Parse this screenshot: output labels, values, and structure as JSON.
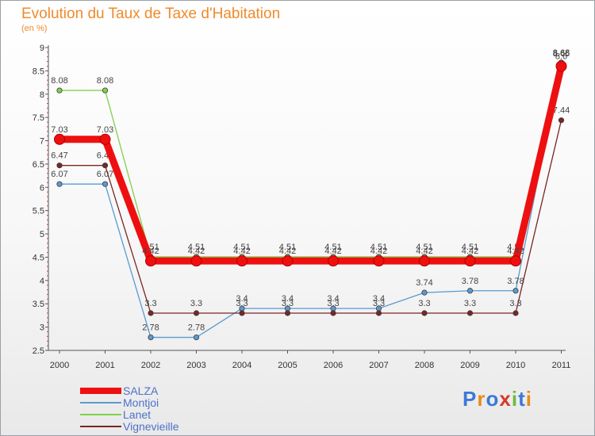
{
  "header": {
    "title": "Evolution du Taux de Taxe d'Habitation",
    "unit": "(en %)"
  },
  "logo": {
    "text": "Proxiti",
    "colors": [
      "#3b79d6",
      "#e98b1d",
      "#3b79d6",
      "#d9382c",
      "#6dbb3c",
      "#3b79d6",
      "#e98b1d"
    ]
  },
  "chart_data": {
    "type": "line",
    "x": [
      "2000",
      "2001",
      "2002",
      "2003",
      "2004",
      "2005",
      "2006",
      "2007",
      "2008",
      "2009",
      "2010",
      "2011"
    ],
    "ylim": [
      2.5,
      9
    ],
    "yticks": [
      "2.5",
      "3",
      "3.5",
      "4",
      "4.5",
      "5",
      "5.5",
      "6",
      "6.5",
      "7",
      "7.5",
      "8",
      "8.5",
      "9"
    ],
    "grid": false,
    "legend_position": "bottom-left",
    "series": [
      {
        "name": "Montjoi",
        "color": "#5a9ad0",
        "values": [
          6.07,
          6.07,
          2.78,
          2.78,
          3.4,
          3.4,
          3.4,
          3.4,
          3.74,
          3.78,
          3.78,
          8.68
        ],
        "labels": [
          "6.07",
          "6.07",
          "2.78",
          "2.78",
          "3.4",
          "3.4",
          "3.4",
          "3.4",
          "3.74",
          "3.78",
          "3.78",
          "8.68"
        ]
      },
      {
        "name": "Vignevieille",
        "color": "#7b2525",
        "values": [
          6.47,
          6.47,
          3.3,
          3.3,
          3.3,
          3.3,
          3.3,
          3.3,
          3.3,
          3.3,
          3.3,
          7.44
        ],
        "labels": [
          "6.47",
          "6.47",
          "3.3",
          "3.3",
          "3.3",
          "3.3",
          "3.3",
          "3.3",
          "3.3",
          "3.3",
          "3.3",
          "7.44"
        ]
      },
      {
        "name": "Lanet",
        "color": "#7fd14a",
        "values": [
          8.08,
          8.08,
          4.51,
          4.51,
          4.51,
          4.51,
          4.51,
          4.51,
          4.51,
          4.51,
          4.51,
          8.66
        ],
        "labels": [
          "8.08",
          "8.08",
          "4.51",
          "4.51",
          "4.51",
          "4.51",
          "4.51",
          "4.51",
          "4.51",
          "4.51",
          "4.51",
          "8.66"
        ]
      },
      {
        "name": "SALZA",
        "color": "#ee1010",
        "values": [
          7.03,
          7.03,
          4.42,
          4.42,
          4.42,
          4.42,
          4.42,
          4.42,
          4.42,
          4.42,
          4.42,
          8.6
        ],
        "labels": [
          "7.03",
          "7.03",
          "4.42",
          "4.42",
          "4.42",
          "4.42",
          "4.42",
          "4.42",
          "4.42",
          "4.42",
          "4.42",
          "8.6"
        ]
      }
    ],
    "legend": [
      "SALZA",
      "Montjoi",
      "Lanet",
      "Vignevieille"
    ]
  }
}
